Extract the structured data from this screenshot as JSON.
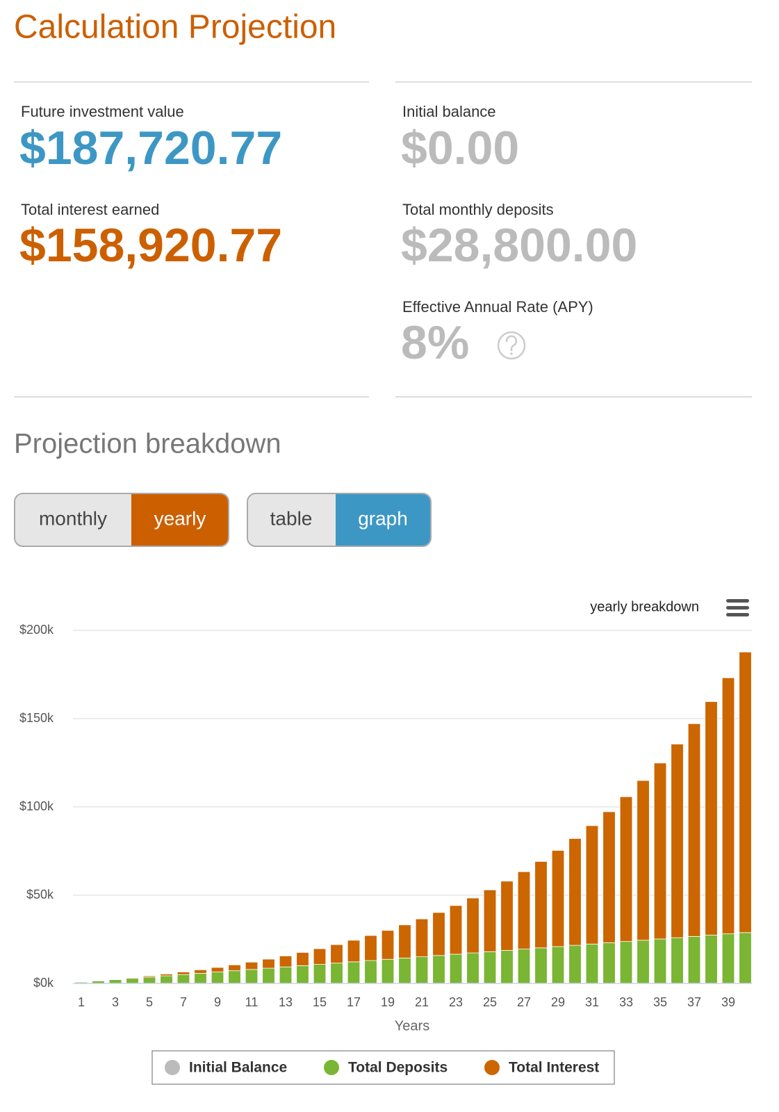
{
  "header": {
    "title": "Calculation Projection"
  },
  "summary": {
    "left": [
      {
        "label": "Future investment value",
        "value": "$187,720.77"
      },
      {
        "label": "Total interest earned",
        "value": "$158,920.77"
      }
    ],
    "right": [
      {
        "label": "Initial balance",
        "value": "$0.00"
      },
      {
        "label": "Total monthly deposits",
        "value": "$28,800.00"
      },
      {
        "label": "Effective Annual Rate (APY)",
        "value": "8%"
      }
    ]
  },
  "breakdown": {
    "title": "Projection breakdown",
    "period_toggle": [
      "monthly",
      "yearly"
    ],
    "view_toggle": [
      "table",
      "graph"
    ]
  },
  "chart_data": {
    "type": "stacked_bar",
    "title": "yearly breakdown",
    "x_label": "Years",
    "categories": [
      1,
      null,
      3,
      null,
      5,
      null,
      7,
      null,
      9,
      null,
      11,
      null,
      13,
      null,
      15,
      null,
      17,
      null,
      19,
      null,
      21,
      null,
      23,
      null,
      25,
      null,
      27,
      null,
      29,
      null,
      31,
      null,
      33,
      null,
      35,
      null,
      37,
      null,
      39,
      null
    ],
    "series": [
      {
        "name": "Initial Balance",
        "color": "#bbbbbb",
        "values": [
          0,
          0,
          0,
          0,
          0,
          0,
          0,
          0,
          0,
          0,
          0,
          0,
          0,
          0,
          0,
          0,
          0,
          0,
          0,
          0,
          0,
          0,
          0,
          0,
          0,
          0,
          0,
          0,
          0,
          0,
          0,
          0,
          0,
          0,
          0,
          0,
          0,
          0,
          0,
          0
        ]
      },
      {
        "name": "Total Deposits",
        "color": "#7ab533",
        "values": [
          720,
          1440,
          2160,
          2880,
          3600,
          4320,
          5040,
          5760,
          6480,
          7200,
          7920,
          8640,
          9360,
          10080,
          10800,
          11520,
          12240,
          12960,
          13680,
          14400,
          15120,
          15840,
          16560,
          17280,
          18000,
          18720,
          19440,
          20160,
          20880,
          21600,
          22320,
          23040,
          23760,
          24480,
          25200,
          25920,
          26640,
          27360,
          28080,
          28800
        ]
      },
      {
        "name": "Total Interest",
        "color": "#cc6600",
        "values": [
          5,
          67,
          192,
          385,
          651,
          996,
          1425,
          1947,
          2569,
          3297,
          4141,
          5111,
          6216,
          7466,
          8875,
          10453,
          12216,
          14177,
          16353,
          18760,
          21417,
          24344,
          27564,
          31099,
          34974,
          39217,
          43856,
          48924,
          54455,
          60487,
          67059,
          74213,
          81997,
          90463,
          99663,
          109657,
          120507,
          132284,
          145060,
          158920.77
        ]
      }
    ],
    "ylim": [
      0,
      200000
    ],
    "yticks": [
      {
        "value": 0,
        "label": "$0k"
      },
      {
        "value": 50000,
        "label": "$50k"
      },
      {
        "value": 100000,
        "label": "$100k"
      },
      {
        "value": 150000,
        "label": "$150k"
      },
      {
        "value": 200000,
        "label": "$200k"
      }
    ],
    "grid": true
  }
}
